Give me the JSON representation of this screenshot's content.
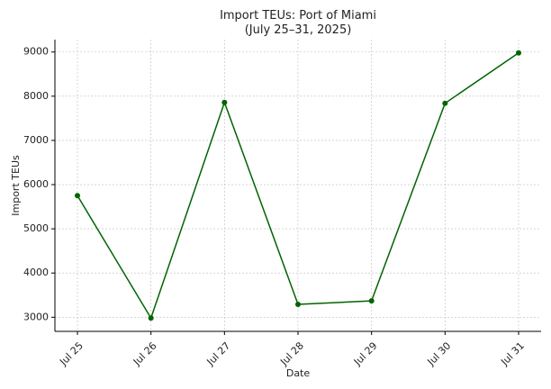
{
  "chart_data": {
    "type": "line",
    "title": "Import TEUs: Port of Miami",
    "subtitle": "(July 25–31, 2025)",
    "xlabel": "Date",
    "ylabel": "Import TEUs",
    "categories": [
      "Jul 25",
      "Jul 26",
      "Jul 27",
      "Jul 28",
      "Jul 29",
      "Jul 30",
      "Jul 31"
    ],
    "series": [
      {
        "values": [
          5750,
          2980,
          7860,
          3290,
          3370,
          7840,
          8980
        ],
        "color": "#006400"
      }
    ],
    "yticks": [
      3000,
      4000,
      5000,
      6000,
      7000,
      8000,
      9000
    ],
    "ylim": [
      2680,
      9280
    ],
    "grid": true,
    "grid_style": "dashed",
    "x_tick_rotation": 45
  }
}
